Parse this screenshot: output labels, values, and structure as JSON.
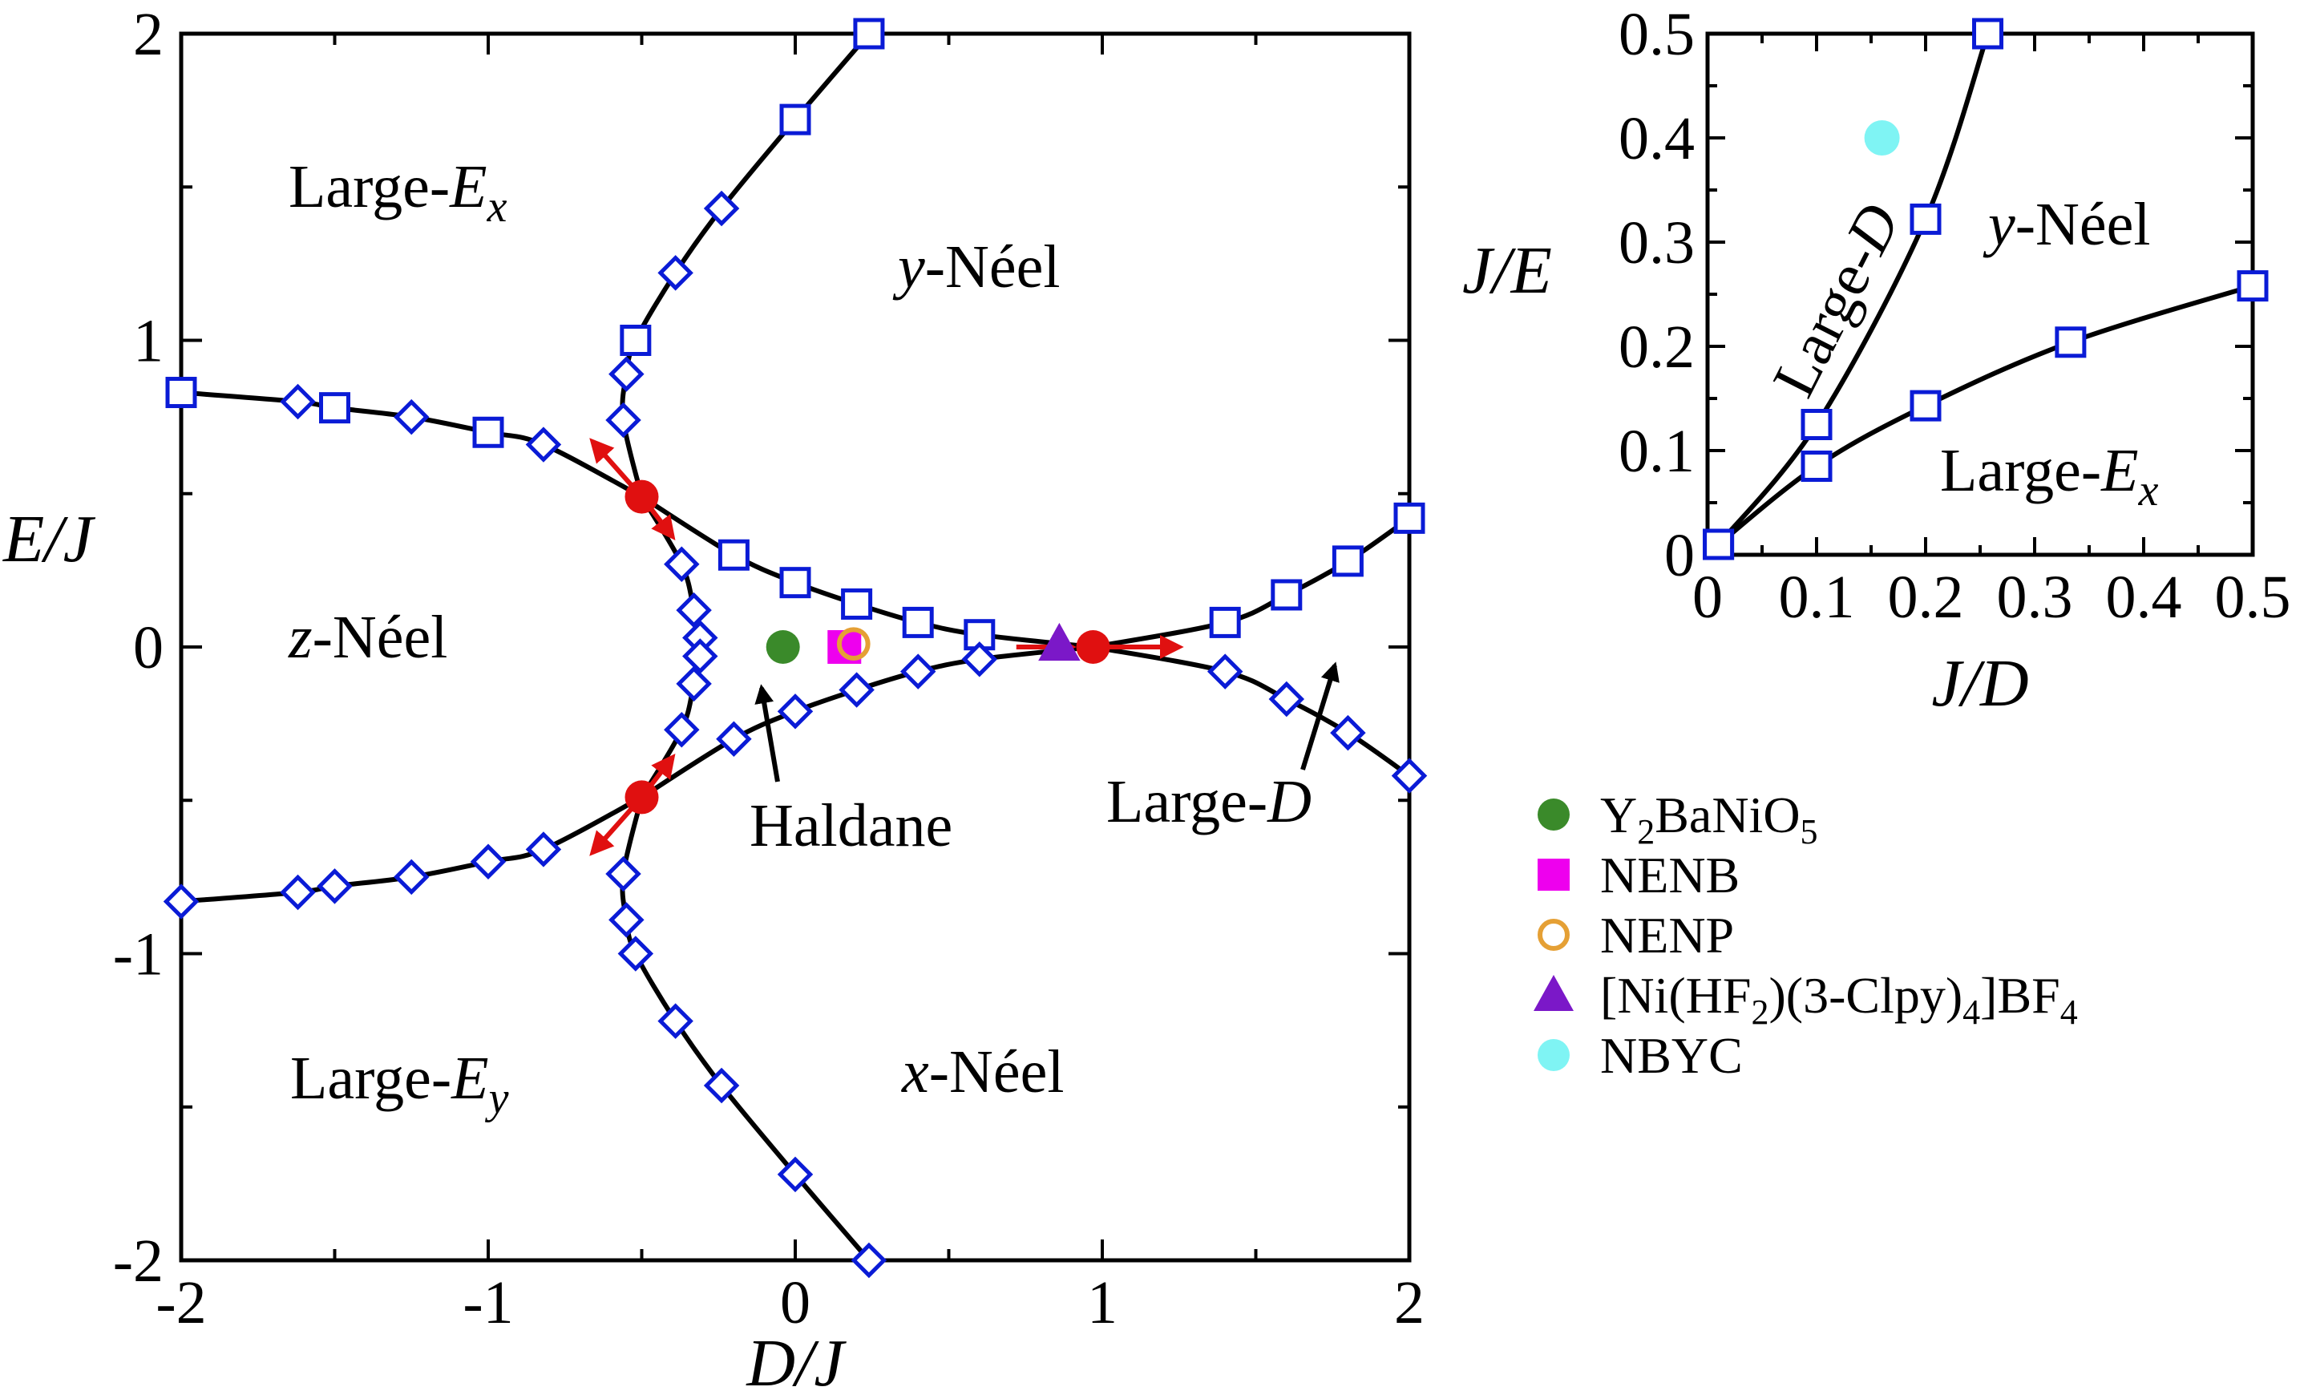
{
  "chart_data": [
    {
      "type": "line",
      "xlabel": "D/J",
      "ylabel": "E/J",
      "xlim": [
        -2,
        2
      ],
      "ylim": [
        -2,
        2
      ],
      "xticks": [
        "-2",
        "-1",
        "0",
        "1",
        "2"
      ],
      "yticks": [
        "-2",
        "-1",
        "0",
        "1",
        "2"
      ],
      "series": [
        {
          "id": "upper-left-boundary",
          "points": [
            [
              -2.0,
              0.83
            ],
            [
              -1.62,
              0.8
            ],
            [
              -1.5,
              0.78
            ],
            [
              -1.25,
              0.75
            ],
            [
              -1.0,
              0.7
            ],
            [
              -0.82,
              0.66
            ],
            [
              -0.5,
              0.49
            ]
          ],
          "markers": [
            "square",
            "diamond",
            "square",
            "diamond",
            "square",
            "diamond",
            "none"
          ]
        },
        {
          "id": "lower-left-boundary",
          "points": [
            [
              -2.0,
              -0.83
            ],
            [
              -1.62,
              -0.8
            ],
            [
              -1.5,
              -0.78
            ],
            [
              -1.25,
              -0.75
            ],
            [
              -1.0,
              -0.7
            ],
            [
              -0.82,
              -0.66
            ],
            [
              -0.5,
              -0.49
            ]
          ],
          "markers": [
            "diamond",
            "diamond",
            "diamond",
            "diamond",
            "diamond",
            "diamond",
            "none"
          ]
        },
        {
          "id": "upper-branch",
          "points": [
            [
              -0.5,
              0.49
            ],
            [
              -0.56,
              0.74
            ],
            [
              -0.55,
              0.89
            ],
            [
              -0.52,
              1.0
            ],
            [
              -0.39,
              1.22
            ],
            [
              -0.24,
              1.43
            ],
            [
              0.0,
              1.72
            ],
            [
              0.24,
              2.0
            ]
          ],
          "markers": [
            "none",
            "diamond",
            "diamond",
            "square",
            "diamond",
            "diamond",
            "square",
            "square"
          ]
        },
        {
          "id": "lower-branch",
          "points": [
            [
              -0.5,
              -0.49
            ],
            [
              -0.56,
              -0.74
            ],
            [
              -0.55,
              -0.89
            ],
            [
              -0.52,
              -1.0
            ],
            [
              -0.39,
              -1.22
            ],
            [
              -0.24,
              -1.43
            ],
            [
              0.0,
              -1.72
            ],
            [
              0.24,
              -2.0
            ]
          ],
          "markers": [
            "none",
            "diamond",
            "diamond",
            "diamond",
            "diamond",
            "diamond",
            "diamond",
            "diamond"
          ]
        },
        {
          "id": "haldane-left-boundary",
          "points": [
            [
              -0.5,
              0.49
            ],
            [
              -0.37,
              0.27
            ],
            [
              -0.33,
              0.12
            ],
            [
              -0.31,
              0.03
            ],
            [
              -0.31,
              -0.03
            ],
            [
              -0.33,
              -0.12
            ],
            [
              -0.37,
              -0.27
            ],
            [
              -0.5,
              -0.49
            ]
          ],
          "markers": [
            "none",
            "diamond",
            "diamond",
            "diamond",
            "diamond",
            "diamond",
            "diamond",
            "none"
          ]
        },
        {
          "id": "haldane-upper-boundary",
          "points": [
            [
              -0.5,
              0.49
            ],
            [
              -0.2,
              0.3
            ],
            [
              0.0,
              0.21
            ],
            [
              0.2,
              0.14
            ],
            [
              0.4,
              0.08
            ],
            [
              0.6,
              0.04
            ],
            [
              0.97,
              0.0
            ]
          ],
          "markers": [
            "none",
            "square",
            "square",
            "square",
            "square",
            "square",
            "none"
          ]
        },
        {
          "id": "haldane-lower-boundary",
          "points": [
            [
              -0.5,
              -0.49
            ],
            [
              -0.2,
              -0.3
            ],
            [
              0.0,
              -0.21
            ],
            [
              0.2,
              -0.14
            ],
            [
              0.4,
              -0.08
            ],
            [
              0.6,
              -0.04
            ],
            [
              0.97,
              0.0
            ]
          ],
          "markers": [
            "none",
            "diamond",
            "diamond",
            "diamond",
            "diamond",
            "diamond",
            "none"
          ]
        },
        {
          "id": "large-d-upper-boundary",
          "points": [
            [
              0.97,
              0.0
            ],
            [
              1.4,
              0.08
            ],
            [
              1.6,
              0.17
            ],
            [
              1.8,
              0.28
            ],
            [
              2.0,
              0.42
            ]
          ],
          "markers": [
            "none",
            "square",
            "square",
            "square",
            "square"
          ]
        },
        {
          "id": "large-d-lower-boundary",
          "points": [
            [
              0.97,
              0.0
            ],
            [
              1.4,
              -0.08
            ],
            [
              1.6,
              -0.17
            ],
            [
              1.8,
              -0.28
            ],
            [
              2.0,
              -0.42
            ]
          ],
          "markers": [
            "none",
            "diamond",
            "diamond",
            "diamond",
            "diamond"
          ]
        }
      ],
      "critical_points": [
        [
          -0.5,
          0.49
        ],
        [
          -0.5,
          -0.49
        ],
        [
          0.97,
          0.0
        ]
      ],
      "arrows": [
        {
          "from": [
            -0.5,
            0.49
          ],
          "to": [
            -0.66,
            0.67
          ]
        },
        {
          "from": [
            -0.5,
            0.49
          ],
          "to": [
            -0.4,
            0.36
          ]
        },
        {
          "from": [
            -0.5,
            -0.49
          ],
          "to": [
            -0.66,
            -0.67
          ]
        },
        {
          "from": [
            -0.5,
            -0.49
          ],
          "to": [
            -0.4,
            -0.36
          ]
        },
        {
          "from": [
            0.97,
            0.0
          ],
          "to": [
            1.25,
            0.0
          ]
        },
        {
          "from": [
            0.72,
            0.0
          ],
          "to": [
            0.9,
            0.0
          ]
        }
      ],
      "materials": [
        {
          "name": "Y2BaNiO5",
          "x": -0.04,
          "y": 0.0,
          "marker": "circle",
          "color": "#3a8a2a"
        },
        {
          "name": "NENB",
          "x": 0.16,
          "y": 0.0,
          "marker": "square",
          "color": "#ee00ee"
        },
        {
          "name": "NENP",
          "x": 0.19,
          "y": 0.01,
          "marker": "circle-open",
          "color": "#e5a035"
        },
        {
          "name": "[Ni(HF2)(3-Clpy)4]BF4",
          "x": 0.86,
          "y": 0.01,
          "marker": "triangle",
          "color": "#7b18c8"
        }
      ],
      "regions": {
        "large_ex": "Large-",
        "large_ex_var": "E",
        "large_ex_sub": "x",
        "y_neel": "-Néel",
        "y_neel_var": "y",
        "z_neel": "-Néel",
        "z_neel_var": "z",
        "haldane": "Haldane",
        "large_d": "Large-",
        "large_d_var": "D",
        "large_ey": "Large-",
        "large_ey_var": "E",
        "large_ey_sub": "y",
        "x_neel": "-Néel",
        "x_neel_var": "x"
      }
    },
    {
      "type": "line",
      "xlabel": "J/D",
      "ylabel": "J/E",
      "xlim": [
        0,
        0.5
      ],
      "ylim": [
        0,
        0.5
      ],
      "xticks": [
        "0",
        "0.1",
        "0.2",
        "0.3",
        "0.4",
        "0.5"
      ],
      "yticks": [
        "0",
        "0.1",
        "0.2",
        "0.3",
        "0.4",
        "0.5"
      ],
      "series": [
        {
          "id": "large-d-boundary",
          "points": [
            [
              0.01,
              0.01
            ],
            [
              0.1,
              0.125
            ],
            [
              0.2,
              0.322
            ],
            [
              0.257,
              0.5
            ]
          ]
        },
        {
          "id": "large-ex-boundary",
          "points": [
            [
              0.01,
              0.01
            ],
            [
              0.1,
              0.085
            ],
            [
              0.2,
              0.143
            ],
            [
              0.333,
              0.204
            ],
            [
              0.5,
              0.258
            ]
          ]
        }
      ],
      "materials": [
        {
          "name": "NBYC",
          "x": 0.16,
          "y": 0.4,
          "marker": "circle",
          "color": "#7ff4f4"
        }
      ],
      "regions": {
        "large_d": "Large-",
        "large_d_var": "D",
        "y_neel": "-Néel",
        "y_neel_var": "y",
        "large_ex": "Large-",
        "large_ex_var": "E",
        "large_ex_sub": "x"
      }
    }
  ],
  "legend": {
    "placement": "right-bottom",
    "entries": [
      {
        "marker": "circle",
        "color": "#3a8a2a",
        "parts": [
          [
            "Y",
            ""
          ],
          [
            "2",
            "sub"
          ],
          [
            "BaNiO",
            ""
          ],
          [
            "5",
            "sub"
          ]
        ]
      },
      {
        "marker": "square",
        "color": "#ee00ee",
        "parts": [
          [
            "NENB",
            ""
          ]
        ]
      },
      {
        "marker": "circle-open",
        "color": "#e5a035",
        "parts": [
          [
            "NENP",
            ""
          ]
        ]
      },
      {
        "marker": "triangle",
        "color": "#7b18c8",
        "parts": [
          [
            "[Ni(HF",
            ""
          ],
          [
            "2",
            "sub"
          ],
          [
            ")(3-Clpy)",
            ""
          ],
          [
            "4",
            "sub"
          ],
          [
            "]BF",
            ""
          ],
          [
            "4",
            "sub"
          ]
        ]
      },
      {
        "marker": "circle",
        "color": "#7ff4f4",
        "parts": [
          [
            "NBYC",
            ""
          ]
        ]
      }
    ]
  },
  "colors": {
    "boundary_marker": "#0a1bd6",
    "critical_point": "#e01010",
    "arrow": "#e01010",
    "line": "#000000"
  }
}
